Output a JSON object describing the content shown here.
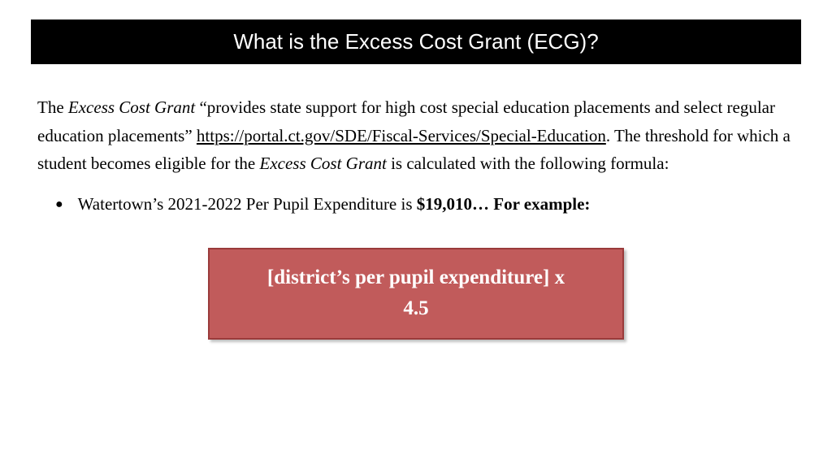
{
  "title": "What is the Excess Cost Grant (ECG)?",
  "paragraph": {
    "lead": "The ",
    "italic1": "Excess Cost Grant",
    "seg1": " “provides state support for high cost special education placements and select regular education placements” ",
    "link": "https://portal.ct.gov/SDE/Fiscal-Services/Special-Education",
    "seg2": ". The threshold for which a student becomes eligible for the ",
    "italic2": "Excess Cost Grant",
    "seg3": " is calculated with the following formula:"
  },
  "bullet": {
    "dot": "●",
    "text_plain": "Watertown’s 2021-2022 Per Pupil Expenditure is ",
    "text_bold": "$19,010… For example:"
  },
  "formula": {
    "line1": "[district’s per pupil expenditure] x",
    "line2": "4.5",
    "box_fill": "#c15b5b",
    "box_border": "#9a3b3b",
    "text_color": "#ffffff"
  },
  "colors": {
    "title_bg": "#000000",
    "title_fg": "#ffffff",
    "body_fg": "#000000",
    "page_bg": "#ffffff"
  }
}
